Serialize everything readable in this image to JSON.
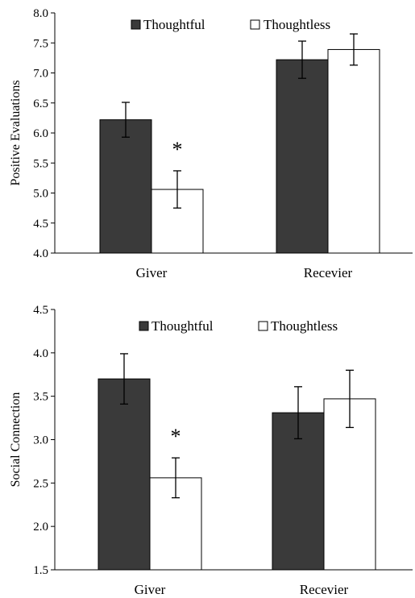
{
  "chart_data": [
    {
      "type": "bar",
      "ylabel": "Positive Evaluations",
      "ylim": [
        4.0,
        8.0
      ],
      "yticks": [
        "4.0",
        "4.5",
        "5.0",
        "5.5",
        "6.0",
        "6.5",
        "7.0",
        "7.5",
        "8.0"
      ],
      "categories": [
        "Giver",
        "Recevier"
      ],
      "series": [
        {
          "name": "Thoughtful",
          "color": "#3a3a3a",
          "values": [
            6.22,
            7.22
          ],
          "error": [
            0.29,
            0.31
          ]
        },
        {
          "name": "Thoughtless",
          "color": "#ffffff",
          "values": [
            5.06,
            7.39
          ],
          "error": [
            0.31,
            0.26
          ]
        }
      ],
      "annotations": [
        {
          "text": "*",
          "category": 0,
          "series": 1
        }
      ],
      "legend": "top"
    },
    {
      "type": "bar",
      "ylabel": "Social Connection",
      "ylim": [
        1.5,
        4.5
      ],
      "yticks": [
        "1.5",
        "2.0",
        "2.5",
        "3.0",
        "3.5",
        "4.0",
        "4.5"
      ],
      "categories": [
        "Giver",
        "Recevier"
      ],
      "series": [
        {
          "name": "Thoughtful",
          "color": "#3a3a3a",
          "values": [
            3.7,
            3.31
          ],
          "error": [
            0.29,
            0.3
          ]
        },
        {
          "name": "Thoughtless",
          "color": "#ffffff",
          "values": [
            2.56,
            3.47
          ],
          "error": [
            0.23,
            0.33
          ]
        }
      ],
      "annotations": [
        {
          "text": "*",
          "category": 0,
          "series": 1
        }
      ],
      "legend": "top"
    }
  ]
}
